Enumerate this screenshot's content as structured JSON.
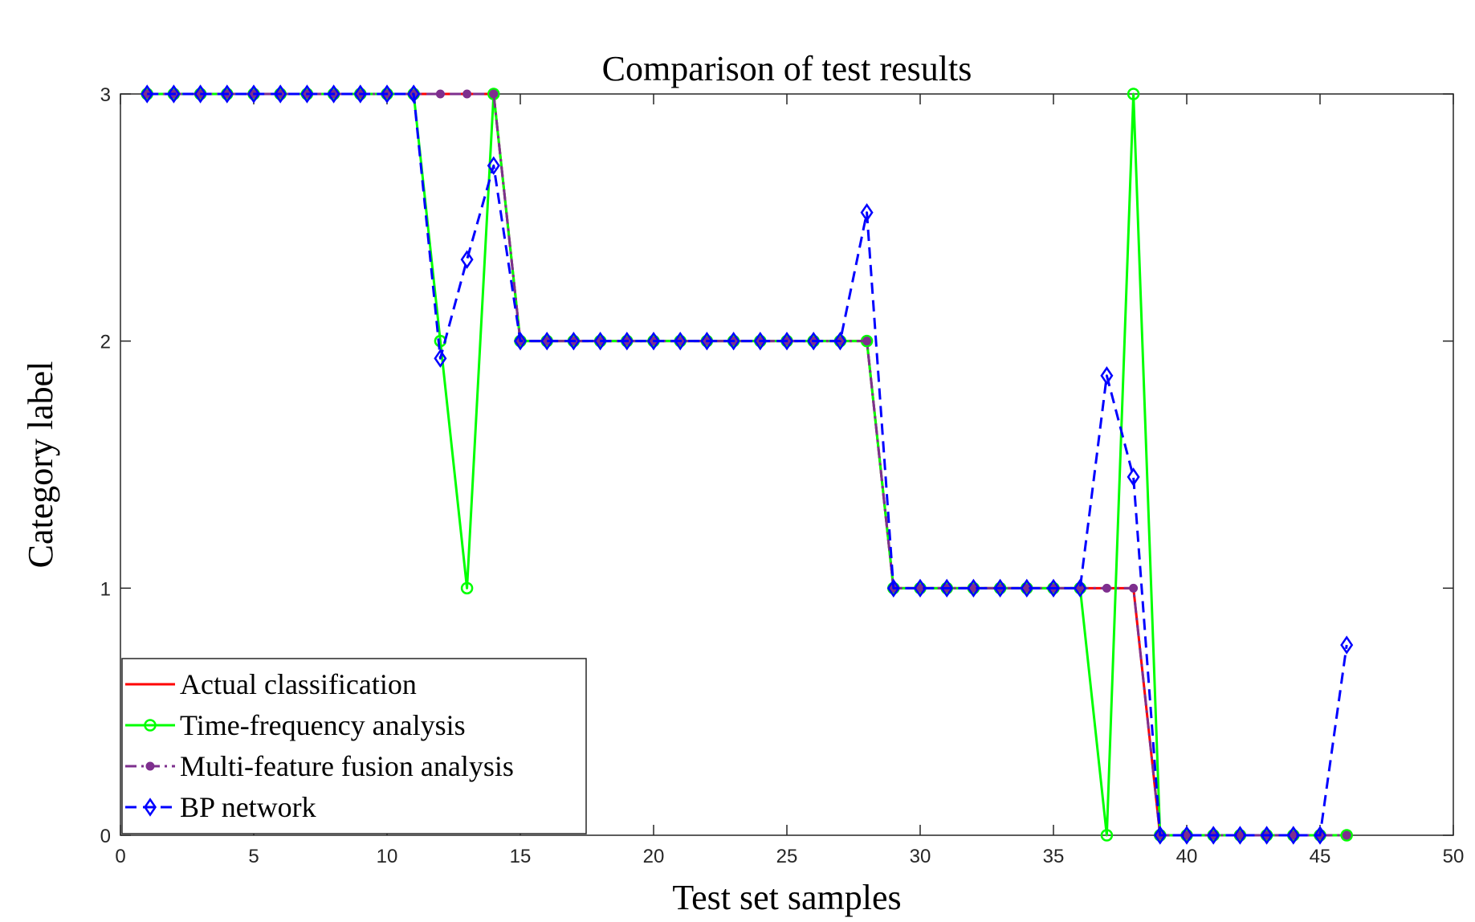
{
  "chart_data": {
    "type": "line",
    "title": "Comparison of test results",
    "xlabel": "Test set samples",
    "ylabel": "Category label",
    "xlim": [
      0,
      50
    ],
    "ylim": [
      0,
      3
    ],
    "xticks": [
      0,
      5,
      10,
      15,
      20,
      25,
      30,
      35,
      40,
      45,
      50
    ],
    "yticks": [
      0,
      1,
      2,
      3
    ],
    "grid": false,
    "legend_position": "bottom-left",
    "x": [
      1,
      2,
      3,
      4,
      5,
      6,
      7,
      8,
      9,
      10,
      11,
      12,
      13,
      14,
      15,
      16,
      17,
      18,
      19,
      20,
      21,
      22,
      23,
      24,
      25,
      26,
      27,
      28,
      29,
      30,
      31,
      32,
      33,
      34,
      35,
      36,
      37,
      38,
      39,
      40,
      41,
      42,
      43,
      44,
      45,
      46
    ],
    "series": [
      {
        "name": "Actual classification",
        "color": "#ff0000",
        "line_style": "solid",
        "marker": "none",
        "values": [
          3,
          3,
          3,
          3,
          3,
          3,
          3,
          3,
          3,
          3,
          3,
          3,
          3,
          3,
          2,
          2,
          2,
          2,
          2,
          2,
          2,
          2,
          2,
          2,
          2,
          2,
          2,
          2,
          1,
          1,
          1,
          1,
          1,
          1,
          1,
          1,
          1,
          1,
          0,
          0,
          0,
          0,
          0,
          0,
          0,
          0
        ]
      },
      {
        "name": "Time-frequency analysis",
        "color": "#00ff00",
        "line_style": "solid",
        "marker": "circle",
        "values": [
          3,
          3,
          3,
          3,
          3,
          3,
          3,
          3,
          3,
          3,
          3,
          2,
          1,
          3,
          2,
          2,
          2,
          2,
          2,
          2,
          2,
          2,
          2,
          2,
          2,
          2,
          2,
          2,
          1,
          1,
          1,
          1,
          1,
          1,
          1,
          1,
          0,
          3,
          0,
          0,
          0,
          0,
          0,
          0,
          0,
          0
        ]
      },
      {
        "name": "Multi-feature fusion analysis",
        "color": "#7e2f8e",
        "line_style": "dashdot",
        "marker": "dot",
        "values": [
          3,
          3,
          3,
          3,
          3,
          3,
          3,
          3,
          3,
          3,
          3,
          3,
          3,
          3,
          2,
          2,
          2,
          2,
          2,
          2,
          2,
          2,
          2,
          2,
          2,
          2,
          2,
          2,
          1,
          1,
          1,
          1,
          1,
          1,
          1,
          1,
          1,
          1,
          0,
          0,
          0,
          0,
          0,
          0,
          0,
          0
        ]
      },
      {
        "name": "BP network",
        "color": "#0000ff",
        "line_style": "dashed",
        "marker": "diamond",
        "values": [
          3,
          3,
          3,
          3,
          3,
          3,
          3,
          3,
          3,
          3,
          3,
          1.93,
          2.33,
          2.71,
          2,
          2,
          2,
          2,
          2,
          2,
          2,
          2,
          2,
          2,
          2,
          2,
          2,
          2.52,
          1,
          1,
          1,
          1,
          1,
          1,
          1,
          1,
          1.86,
          1.45,
          0,
          0,
          0,
          0,
          0,
          0,
          0,
          0.77
        ]
      }
    ]
  }
}
